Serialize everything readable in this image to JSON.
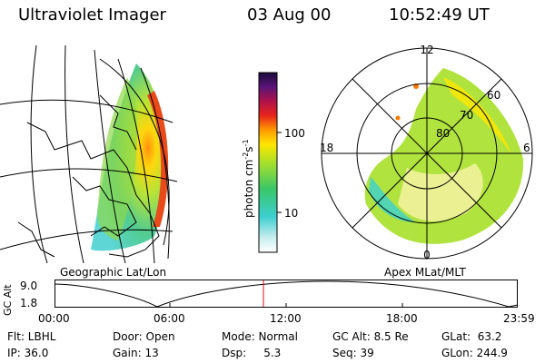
{
  "header": {
    "instrument": "Ultraviolet Imager",
    "date": "03 Aug 00",
    "time": "10:52:49 UT"
  },
  "left_panel": {
    "caption": "Geographic Lat/Lon"
  },
  "right_panel": {
    "caption": "Apex MLat/MLT",
    "mlt_labels": {
      "top": "12",
      "bottom": "0",
      "left": "18",
      "right": "6"
    },
    "mlat_labels": [
      "60",
      "70",
      "80"
    ]
  },
  "colorbar": {
    "unit": "photon cm",
    "unit_exp1": "-2",
    "unit_mid": "s",
    "unit_exp2": "-1",
    "tick_labels": [
      "100",
      "10"
    ],
    "scale": "log"
  },
  "altitude_plot": {
    "ylabel": "GC Alt",
    "ytick_top": "9.0",
    "ytick_bottom": "1.8",
    "xticks": [
      "00:00",
      "06:00",
      "12:00",
      "18:00",
      "23:59"
    ],
    "marker_color": "#dd1111"
  },
  "status": {
    "row1": {
      "flt": "Flt: LBHL",
      "door": "Door: Open",
      "mode": "Mode: Normal",
      "gc_alt": "GC Alt: 8.5 Re",
      "glat": "GLat:  63.2"
    },
    "row2": {
      "ip": "IP: 36.0",
      "gain": "Gain: 13",
      "dsp": "Dsp:     5.3",
      "seq": "Seq: 39",
      "glon": "GLon: 244.9"
    }
  }
}
